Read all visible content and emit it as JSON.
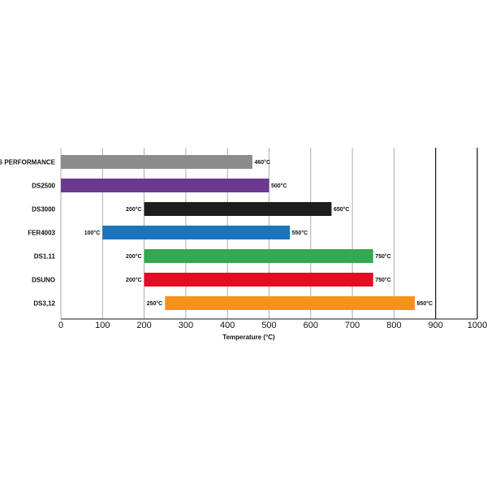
{
  "chart_data": {
    "type": "bar",
    "orientation": "horizontal",
    "title": "",
    "xlabel": "Temperature (°C)",
    "ylabel": "",
    "xlim": [
      0,
      1000
    ],
    "xticks": [
      0,
      100,
      200,
      300,
      400,
      500,
      600,
      700,
      800,
      900,
      1000
    ],
    "grid": true,
    "legend": "none",
    "bars": [
      {
        "category": "DS PERFORMANCE",
        "start": 0,
        "end": 460,
        "start_label": "",
        "end_label": "460°C",
        "color": "#8c8c8c"
      },
      {
        "category": "DS2500",
        "start": 0,
        "end": 500,
        "start_label": "",
        "end_label": "500°C",
        "color": "#6b3a8e"
      },
      {
        "category": "DS3000",
        "start": 200,
        "end": 650,
        "start_label": "200°C",
        "end_label": "650°C",
        "color": "#1d1d1b"
      },
      {
        "category": "FER4003",
        "start": 100,
        "end": 550,
        "start_label": "100°C",
        "end_label": "550°C",
        "color": "#1a74b9"
      },
      {
        "category": "DS1.11",
        "start": 200,
        "end": 750,
        "start_label": "200°C",
        "end_label": "750°C",
        "color": "#34a853"
      },
      {
        "category": "DSUNO",
        "start": 200,
        "end": 750,
        "start_label": "200°C",
        "end_label": "750°C",
        "color": "#e00d25"
      },
      {
        "category": "DS3,12",
        "start": 250,
        "end": 850,
        "start_label": "250°C",
        "end_label": "850°C",
        "color": "#f39319"
      }
    ]
  }
}
